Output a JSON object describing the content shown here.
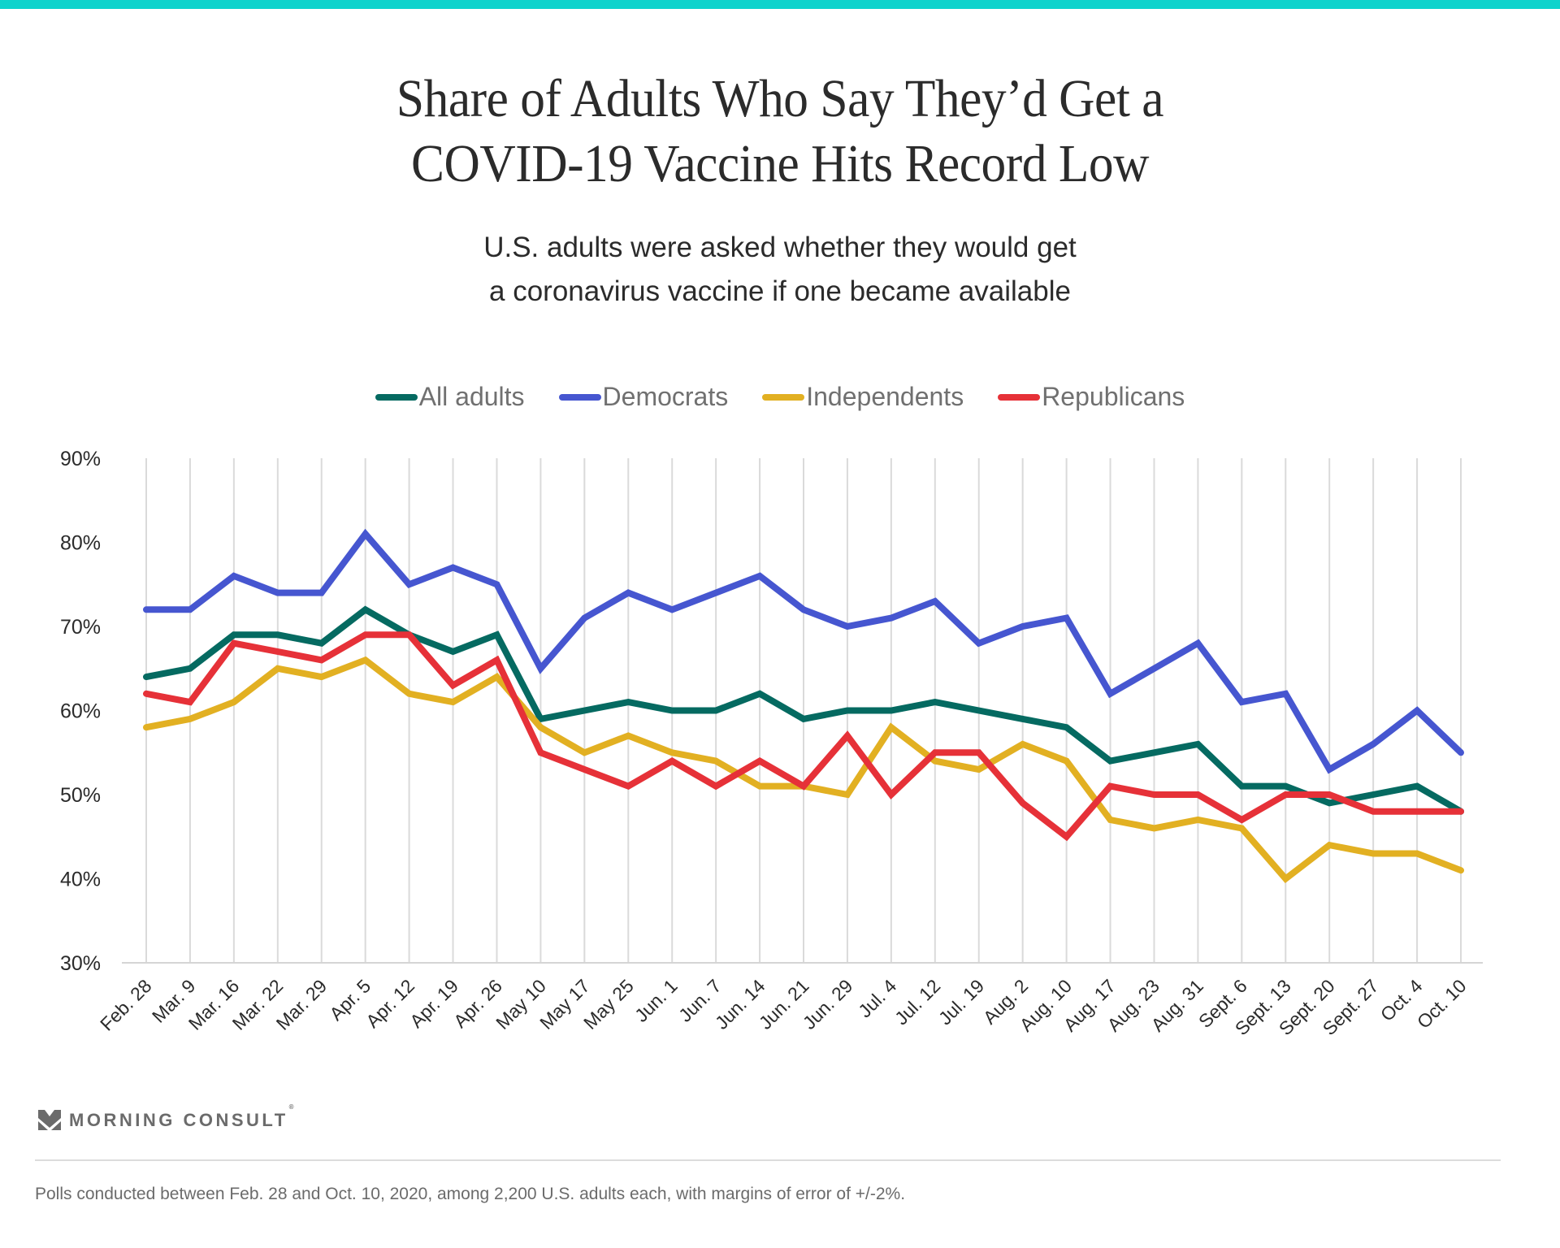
{
  "header": {
    "title_lines": [
      "Share of Adults Who Say They’d Get a",
      "COVID-19 Vaccine Hits Record Low"
    ],
    "subtitle_lines": [
      "U.S. adults were asked whether they would get",
      "a coronavirus vaccine if one became available"
    ],
    "accent_color": "#0fd3cc"
  },
  "chart_data": {
    "type": "line",
    "title": "Share of Adults Who Say They’d Get a COVID-19 Vaccine Hits Record Low",
    "subtitle": "U.S. adults were asked whether they would get a coronavirus vaccine if one became available",
    "xlabel": "",
    "ylabel": "",
    "ylim": [
      30,
      90
    ],
    "yticks": [
      30,
      40,
      50,
      60,
      70,
      80,
      90
    ],
    "ytick_labels": [
      "30%",
      "40%",
      "50%",
      "60%",
      "70%",
      "80%",
      "90%"
    ],
    "grid": "vertical",
    "legend_position": "top-center",
    "categories": [
      "Feb. 28",
      "Mar. 9",
      "Mar. 16",
      "Mar. 22",
      "Mar. 29",
      "Apr. 5",
      "Apr. 12",
      "Apr. 19",
      "Apr. 26",
      "May 10",
      "May 17",
      "May 25",
      "Jun. 1",
      "Jun. 7",
      "Jun. 14",
      "Jun. 21",
      "Jun. 29",
      "Jul. 4",
      "Jul. 12",
      "Jul. 19",
      "Aug. 2",
      "Aug. 10",
      "Aug. 17",
      "Aug. 23",
      "Aug. 31",
      "Sept. 6",
      "Sept. 13",
      "Sept. 20",
      "Sept. 27",
      "Oct. 4",
      "Oct. 10"
    ],
    "series": [
      {
        "name": "All adults",
        "color": "#056a61",
        "values": [
          64,
          65,
          69,
          69,
          68,
          72,
          69,
          67,
          69,
          59,
          60,
          61,
          60,
          60,
          62,
          59,
          60,
          60,
          61,
          60,
          59,
          58,
          54,
          55,
          56,
          51,
          51,
          49,
          50,
          51,
          48
        ]
      },
      {
        "name": "Democrats",
        "color": "#4656d0",
        "values": [
          72,
          72,
          76,
          74,
          74,
          81,
          75,
          77,
          75,
          65,
          71,
          74,
          72,
          74,
          76,
          72,
          70,
          71,
          73,
          68,
          70,
          71,
          62,
          65,
          68,
          61,
          62,
          53,
          56,
          60,
          55
        ]
      },
      {
        "name": "Independents",
        "color": "#e2b022",
        "values": [
          58,
          59,
          61,
          65,
          64,
          66,
          62,
          61,
          64,
          58,
          55,
          57,
          55,
          54,
          51,
          51,
          50,
          58,
          54,
          53,
          56,
          54,
          47,
          46,
          47,
          46,
          40,
          44,
          43,
          43,
          41
        ]
      },
      {
        "name": "Republicans",
        "color": "#e63138",
        "values": [
          62,
          61,
          68,
          67,
          66,
          69,
          69,
          63,
          66,
          55,
          53,
          51,
          54,
          51,
          54,
          51,
          57,
          50,
          55,
          55,
          49,
          45,
          51,
          50,
          50,
          47,
          50,
          50,
          48,
          48,
          48
        ]
      }
    ]
  },
  "footer": {
    "logo_text": "MORNING CONSULT",
    "logo_mark": "®",
    "note": "Polls conducted between Feb. 28 and Oct. 10, 2020, among 2,200 U.S. adults each, with margins of error of +/-2%."
  }
}
